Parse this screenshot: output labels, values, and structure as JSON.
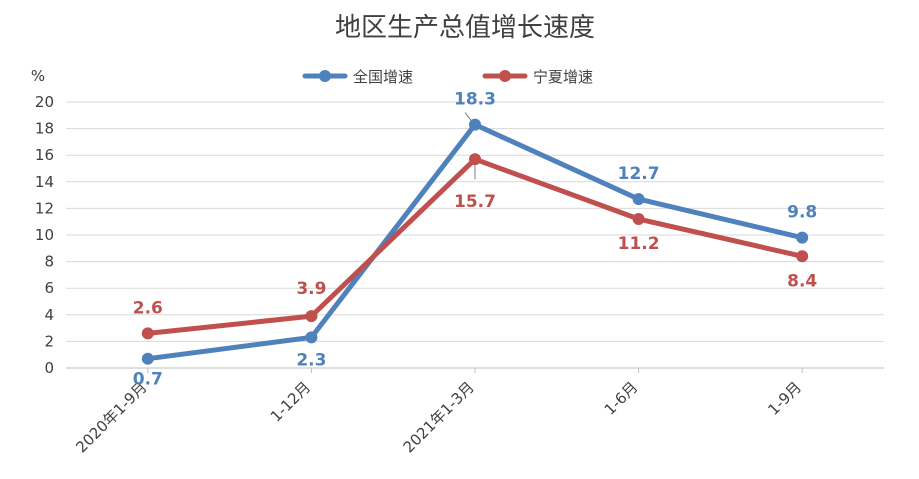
{
  "chart_data": {
    "type": "line",
    "title": "地区生产总值增长速度",
    "ylabel": "%",
    "xlabel": "",
    "ylim": [
      0,
      20
    ],
    "yticks": [
      0,
      2,
      4,
      6,
      8,
      10,
      12,
      14,
      16,
      18,
      20
    ],
    "categories": [
      "2020年1-9月",
      "1-12月",
      "2021年1-3月",
      "1-6月",
      "1-9月"
    ],
    "grid": true,
    "legend_position": "top-center",
    "series": [
      {
        "name": "全国增速",
        "color": "#4F81BD",
        "values": [
          0.7,
          2.3,
          18.3,
          12.7,
          9.8
        ],
        "labels": [
          "0.7",
          "2.3",
          "18.3",
          "12.7",
          "9.8"
        ]
      },
      {
        "name": "宁夏增速",
        "color": "#C0504D",
        "values": [
          2.6,
          3.9,
          15.7,
          11.2,
          8.4
        ],
        "labels": [
          "2.6",
          "3.9",
          "15.7",
          "11.2",
          "8.4"
        ]
      }
    ]
  }
}
